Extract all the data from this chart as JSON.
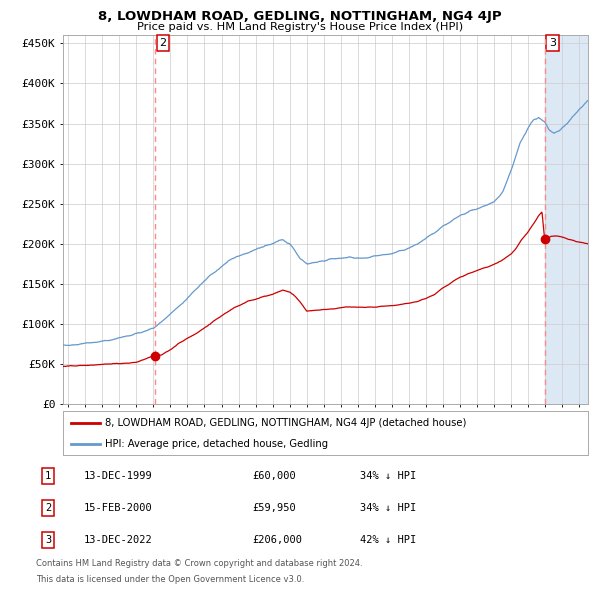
{
  "title": "8, LOWDHAM ROAD, GEDLING, NOTTINGHAM, NG4 4JP",
  "subtitle": "Price paid vs. HM Land Registry's House Price Index (HPI)",
  "legend_line1": "8, LOWDHAM ROAD, GEDLING, NOTTINGHAM, NG4 4JP (detached house)",
  "legend_line2": "HPI: Average price, detached house, Gedling",
  "table": [
    {
      "num": "1",
      "date": "13-DEC-1999",
      "price": "£60,000",
      "pct": "34% ↓ HPI"
    },
    {
      "num": "2",
      "date": "15-FEB-2000",
      "price": "£59,950",
      "pct": "34% ↓ HPI"
    },
    {
      "num": "3",
      "date": "13-DEC-2022",
      "price": "£206,000",
      "pct": "42% ↓ HPI"
    }
  ],
  "footnote1": "Contains HM Land Registry data © Crown copyright and database right 2024.",
  "footnote2": "This data is licensed under the Open Government Licence v3.0.",
  "sale1_date_num": 1999.958,
  "sale2_date_num": 2000.12,
  "sale3_date_num": 2022.958,
  "sale1_price": 60000,
  "sale2_price": 59950,
  "sale3_price": 206000,
  "red_color": "#cc0000",
  "blue_color": "#6699cc",
  "dashed_color": "#ff8888",
  "bg_shaded": "#dde8f5",
  "grid_color": "#cccccc",
  "ylim_max": 460000,
  "xlim_min": 1994.7,
  "xlim_max": 2025.5
}
